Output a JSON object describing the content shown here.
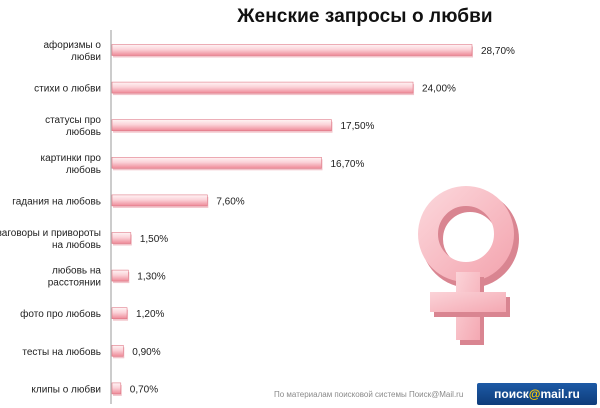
{
  "chart_data": {
    "type": "bar",
    "orientation": "horizontal",
    "title": "Женские запросы о любви",
    "categories": [
      [
        "афоризмы о",
        "любви"
      ],
      [
        "стихи о любви"
      ],
      [
        "статусы про",
        "любовь"
      ],
      [
        "картинки про",
        "любовь"
      ],
      [
        "гадания на любовь"
      ],
      [
        "заговоры и привороты",
        "на любовь"
      ],
      [
        "любовь на",
        "расстоянии"
      ],
      [
        "фото про любовь"
      ],
      [
        "тесты на любовь"
      ],
      [
        "клипы о любви"
      ]
    ],
    "values": [
      28.7,
      24.0,
      17.5,
      16.7,
      7.6,
      1.5,
      1.3,
      1.2,
      0.9,
      0.7
    ],
    "value_labels": [
      "28,70%",
      "24,00%",
      "17,50%",
      "16,70%",
      "7,60%",
      "1,50%",
      "1,30%",
      "1,20%",
      "0,90%",
      "0,70%"
    ],
    "xlim": [
      0,
      30
    ],
    "colors": {
      "bar_light": "#fde2e6",
      "bar_dark": "#f08a98",
      "bar_edge": "#e07a88",
      "symbol": "#f7b8c0"
    }
  },
  "footer": {
    "source": "По материалам поисковой системы Поиск@Mail.ru",
    "logo_left": "поиск",
    "logo_at": "@",
    "logo_right": "mail.ru"
  }
}
